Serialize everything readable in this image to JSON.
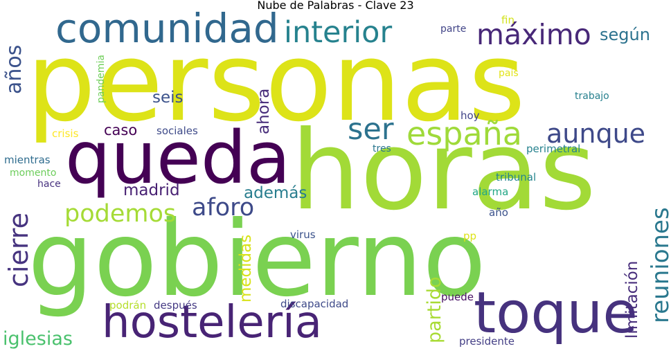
{
  "title": "Nube de Palabras - Clave 23",
  "words": {
    "personas": {
      "text": "personas",
      "color": "#dde318"
    },
    "horas": {
      "text": "horas",
      "color": "#a2da37"
    },
    "gobierno": {
      "text": "gobierno",
      "color": "#7ad151"
    },
    "queda": {
      "text": "queda",
      "color": "#440154"
    },
    "hosteleria": {
      "text": "hostelería",
      "color": "#482475"
    },
    "toque": {
      "text": "toque",
      "color": "#46327e"
    },
    "comunidad": {
      "text": "comunidad",
      "color": "#31688e"
    },
    "interior": {
      "text": "interior",
      "color": "#26828e"
    },
    "maximo": {
      "text": "máximo",
      "color": "#482878"
    },
    "anos": {
      "text": "años",
      "color": "#3b528b"
    },
    "segun": {
      "text": "según",
      "color": "#2c728e"
    },
    "ser": {
      "text": "ser",
      "color": "#2c728e"
    },
    "espana": {
      "text": "españa",
      "color": "#9fda3a"
    },
    "aunque": {
      "text": "aunque",
      "color": "#3e4989"
    },
    "seis": {
      "text": "seis",
      "color": "#3b528b"
    },
    "caso": {
      "text": "caso",
      "color": "#440154"
    },
    "sociales": {
      "text": "sociales",
      "color": "#3e4a89"
    },
    "podemos": {
      "text": "podemos",
      "color": "#a5db36"
    },
    "aforo": {
      "text": "aforo",
      "color": "#3e4a89"
    },
    "madrid": {
      "text": "madrid",
      "color": "#482173"
    },
    "ademas": {
      "text": "además",
      "color": "#287d8e"
    },
    "cierre": {
      "text": "cierre",
      "color": "#46337f"
    },
    "ahora": {
      "text": "ahora",
      "color": "#472c7a"
    },
    "reuniones": {
      "text": "reuniones",
      "color": "#2a788e"
    },
    "medidas": {
      "text": "medidas",
      "color": "#d8e219"
    },
    "limitacion": {
      "text": "limitación",
      "color": "#472d7b"
    },
    "partido": {
      "text": "partido",
      "color": "#a8db34"
    },
    "iglesias": {
      "text": "iglesias",
      "color": "#4ac16d"
    },
    "crisis": {
      "text": "crisis",
      "color": "#fde725"
    },
    "pandemia": {
      "text": "pandemia",
      "color": "#6ece58"
    },
    "parte": {
      "text": "parte",
      "color": "#414487"
    },
    "fin": {
      "text": "fin",
      "color": "#d2e21b"
    },
    "pais": {
      "text": "país",
      "color": "#e2e418"
    },
    "trabajo": {
      "text": "trabajo",
      "color": "#27808e"
    },
    "hoy": {
      "text": "hoy",
      "color": "#414487"
    },
    "tres": {
      "text": "tres",
      "color": "#2a768e"
    },
    "perimetral": {
      "text": "perimetral",
      "color": "#26828e"
    },
    "mientras": {
      "text": "mientras",
      "color": "#2f6c8e"
    },
    "momento": {
      "text": "momento",
      "color": "#6ccd5a"
    },
    "hace": {
      "text": "hace",
      "color": "#46307e"
    },
    "tribunal": {
      "text": "tribunal",
      "color": "#25858e"
    },
    "alarma": {
      "text": "alarma",
      "color": "#21a685"
    },
    "ano": {
      "text": "año",
      "color": "#3b528b"
    },
    "virus": {
      "text": "virus",
      "color": "#3b528b"
    },
    "pp": {
      "text": "pp",
      "color": "#dde318"
    },
    "podran": {
      "text": "podrán",
      "color": "#b5de2b"
    },
    "despues": {
      "text": "después",
      "color": "#443983"
    },
    "discapacidad": {
      "text": "discapacidad",
      "color": "#3e4a89"
    },
    "puede": {
      "text": "puede",
      "color": "#471063"
    },
    "presidente": {
      "text": "presidente",
      "color": "#433e85"
    }
  }
}
